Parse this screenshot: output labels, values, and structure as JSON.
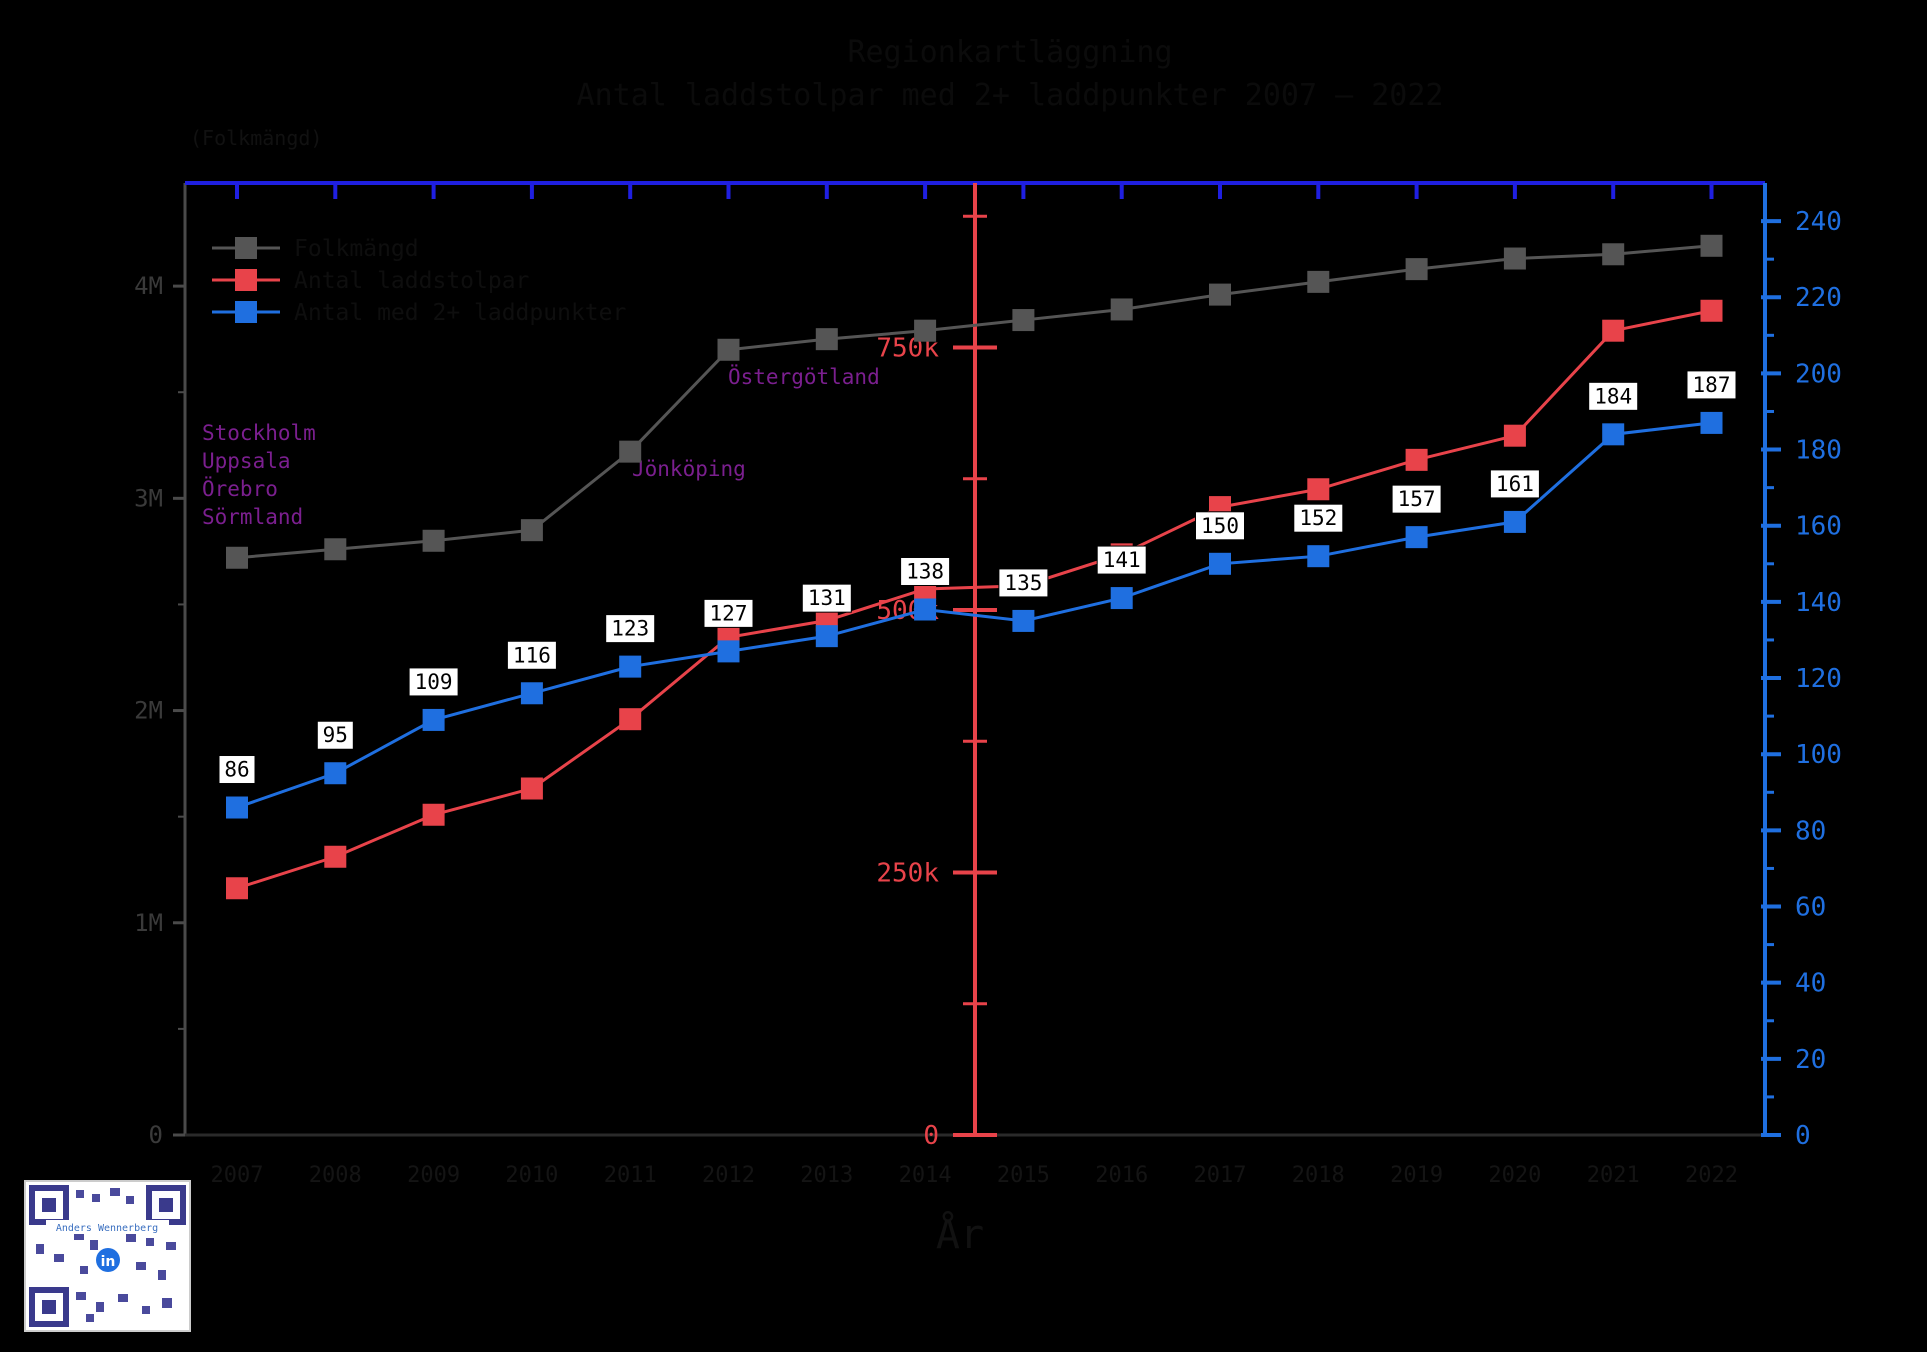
{
  "chart_data": {
    "type": "line",
    "title": "Regionkartläggning",
    "subtitle": "Antal laddstolpar med 2+ laddpunkter 2007 – 2022",
    "left_axis_note": "(Folkmängd)",
    "xlabel": "År",
    "categories": [
      "2007",
      "2008",
      "2009",
      "2010",
      "2011",
      "2012",
      "2013",
      "2014",
      "2015",
      "2016",
      "2017",
      "2018",
      "2019",
      "2020",
      "2021",
      "2022"
    ],
    "left_axis": {
      "ticks": [
        "0",
        "1M",
        "2M",
        "3M",
        "4M"
      ],
      "ylim": [
        0,
        4500000
      ]
    },
    "middle_axis": {
      "ticks": [
        "0",
        "250k",
        "500k",
        "750k"
      ],
      "ylim": [
        0,
        900000
      ]
    },
    "right_axis": {
      "ticks": [
        "0",
        "20",
        "40",
        "60",
        "80",
        "100",
        "120",
        "140",
        "160",
        "180",
        "200",
        "220",
        "240"
      ],
      "ylim": [
        0,
        250
      ]
    },
    "series": [
      {
        "name": "Folkmängd",
        "axis": "left",
        "color": "#555555",
        "values": [
          2720000,
          2760000,
          2800000,
          2850000,
          3220000,
          3700000,
          3750000,
          3790000,
          3840000,
          3890000,
          3960000,
          4020000,
          4080000,
          4130000,
          4150000,
          4190000
        ]
      },
      {
        "name": "Antal laddstolpar",
        "axis": "middle",
        "color": "#e8434a",
        "values": [
          235000,
          265000,
          305000,
          330000,
          396000,
          474000,
          490000,
          520000,
          523000,
          553000,
          598000,
          615000,
          643000,
          666000,
          766000,
          785000
        ]
      },
      {
        "name": "Antal med 2+ laddpunkter",
        "axis": "right",
        "color": "#1f6fe0",
        "values": [
          86,
          95,
          109,
          116,
          123,
          127,
          131,
          138,
          135,
          141,
          150,
          152,
          157,
          161,
          184,
          187
        ],
        "data_labels": [
          "86",
          "95",
          "109",
          "116",
          "123",
          "127",
          "131",
          "138",
          "135",
          "141",
          "150",
          "152",
          "157",
          "161",
          "184",
          "187"
        ]
      }
    ],
    "annotations": [
      {
        "text": "Stockholm",
        "color": "#7b1f8f"
      },
      {
        "text": "Uppsala",
        "color": "#7b1f8f"
      },
      {
        "text": "Örebro",
        "color": "#7b1f8f"
      },
      {
        "text": "Sörmland",
        "color": "#7b1f8f"
      },
      {
        "text": "Jönköping",
        "color": "#7b1f8f"
      },
      {
        "text": "Östergötland",
        "color": "#7b1f8f"
      }
    ],
    "legend_position": "top-left"
  },
  "watermark": {
    "name": "Anders Wennerberg",
    "icon": "linkedin-icon"
  }
}
